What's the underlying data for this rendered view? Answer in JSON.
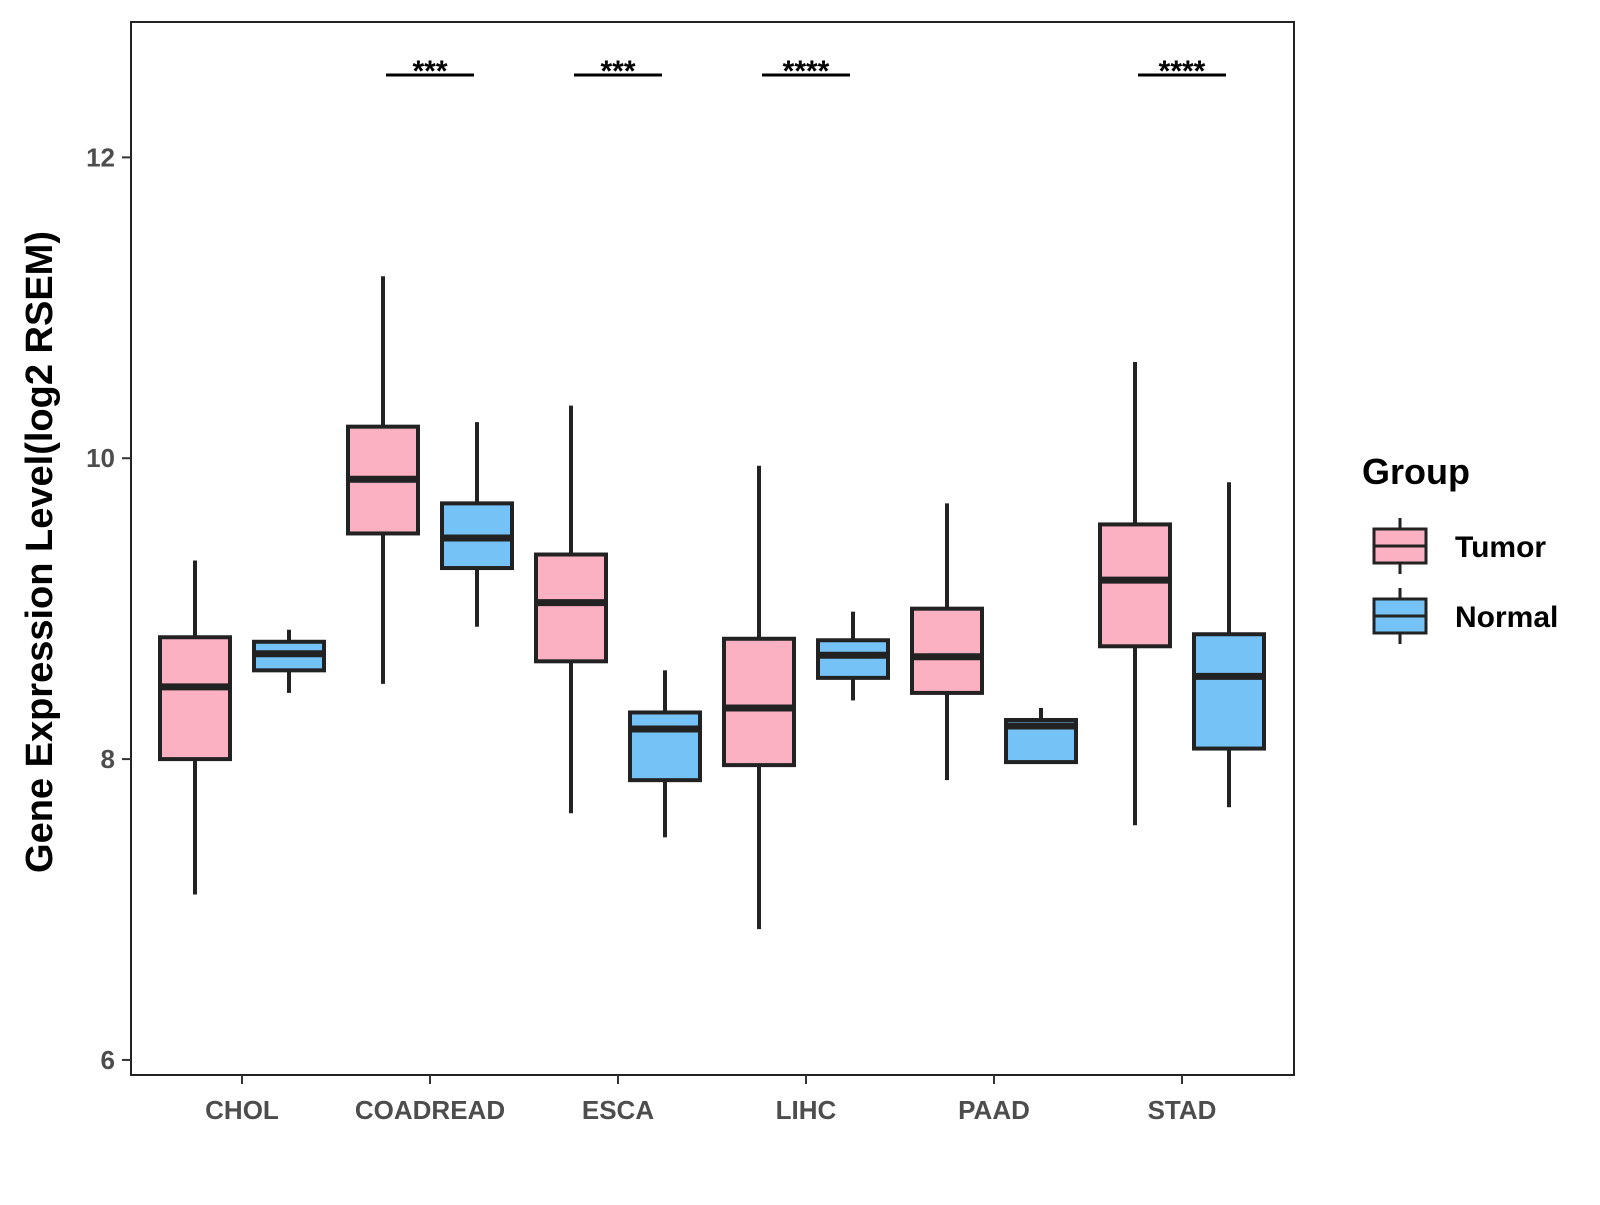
{
  "chart_data": {
    "type": "boxplot",
    "title": "",
    "xlabel": "",
    "ylabel": "Gene Expression Level(log2 RSEM)",
    "ylim": [
      5.9,
      12.9
    ],
    "y_ticks": [
      6,
      8,
      10,
      12
    ],
    "categories": [
      "CHOL",
      "COADREAD",
      "ESCA",
      "LIHC",
      "PAAD",
      "STAD"
    ],
    "legend": {
      "title": "Group",
      "position": "right",
      "entries": [
        {
          "name": "Tumor",
          "color": "#FBB1C2"
        },
        {
          "name": "Normal",
          "color": "#75C2F6"
        }
      ]
    },
    "series": [
      {
        "name": "Tumor",
        "color": "#FBB1C2",
        "boxes": [
          {
            "category": "CHOL",
            "min": 7.1,
            "q1": 8.0,
            "median": 8.48,
            "q3": 8.81,
            "max": 9.32
          },
          {
            "category": "COADREAD",
            "min": 8.5,
            "q1": 9.5,
            "median": 9.86,
            "q3": 10.21,
            "max": 11.21
          },
          {
            "category": "ESCA",
            "min": 7.64,
            "q1": 8.65,
            "median": 9.04,
            "q3": 9.36,
            "max": 10.35
          },
          {
            "category": "LIHC",
            "min": 6.87,
            "q1": 7.96,
            "median": 8.34,
            "q3": 8.8,
            "max": 9.95
          },
          {
            "category": "PAAD",
            "min": 7.86,
            "q1": 8.44,
            "median": 8.68,
            "q3": 9.0,
            "max": 9.7
          },
          {
            "category": "STAD",
            "min": 7.56,
            "q1": 8.75,
            "median": 9.19,
            "q3": 9.56,
            "max": 10.64
          }
        ]
      },
      {
        "name": "Normal",
        "color": "#75C2F6",
        "boxes": [
          {
            "category": "CHOL",
            "min": 8.44,
            "q1": 8.59,
            "median": 8.7,
            "q3": 8.78,
            "max": 8.86
          },
          {
            "category": "COADREAD",
            "min": 8.88,
            "q1": 9.27,
            "median": 9.47,
            "q3": 9.7,
            "max": 10.24
          },
          {
            "category": "ESCA",
            "min": 7.48,
            "q1": 7.86,
            "median": 8.2,
            "q3": 8.31,
            "max": 8.59
          },
          {
            "category": "LIHC",
            "min": 8.39,
            "q1": 8.54,
            "median": 8.69,
            "q3": 8.79,
            "max": 8.98
          },
          {
            "category": "PAAD",
            "min": 7.98,
            "q1": 7.98,
            "median": 8.22,
            "q3": 8.26,
            "max": 8.34
          },
          {
            "category": "STAD",
            "min": 7.68,
            "q1": 8.07,
            "median": 8.55,
            "q3": 8.83,
            "max": 9.84
          }
        ]
      }
    ],
    "significance": [
      {
        "category": "COADREAD",
        "label": "***"
      },
      {
        "category": "ESCA",
        "label": "***"
      },
      {
        "category": "LIHC",
        "label": "****"
      },
      {
        "category": "STAD",
        "label": "****"
      }
    ]
  }
}
